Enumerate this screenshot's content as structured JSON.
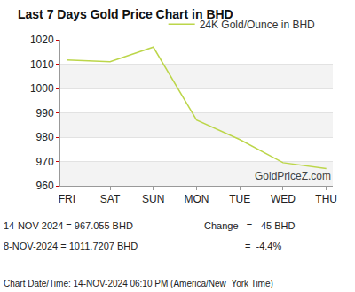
{
  "chart_data": {
    "type": "line",
    "title": "Last 7 Days Gold Price Chart in BHD",
    "categories": [
      "FRI",
      "SAT",
      "SUN",
      "MON",
      "TUE",
      "WED",
      "THU"
    ],
    "series": [
      {
        "name": "24K Gold/Ounce in BHD",
        "color": "#bcd64a",
        "values": [
          1011.7207,
          1011,
          1017,
          987,
          979,
          969.5,
          967.055
        ]
      }
    ],
    "ylim": [
      960,
      1020
    ],
    "yticks": [
      960,
      970,
      980,
      990,
      1000,
      1010,
      1020
    ],
    "grid": true,
    "legend": "top",
    "annotations": [
      "GoldPriceZ.com",
      "14-NOV-2024 = 967.055 BHD",
      "Change   =  -45 BHD",
      "8-NOV-2024 = 1011.7207 BHD",
      "=  -4.4%",
      "Chart Date/Time: 14-NOV-2024 06:10 PM (America/New_York Time)"
    ]
  }
}
